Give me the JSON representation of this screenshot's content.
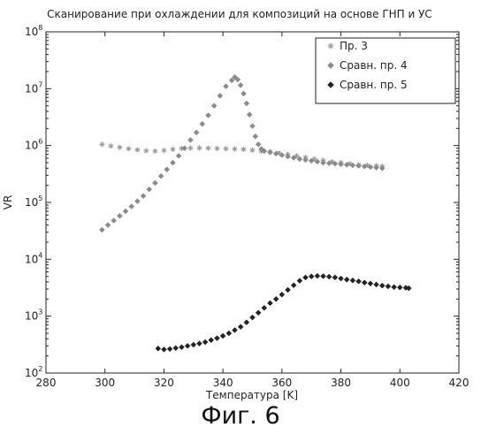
{
  "chart_data": {
    "type": "scatter",
    "title": "Сканирование при охлаждении для композиций на основе ГНП и УС",
    "xlabel": "Температура [K]",
    "ylabel": "VR",
    "xlim": [
      280,
      420
    ],
    "ylim": [
      100,
      100000000
    ],
    "yscale": "log",
    "x_ticks": [
      "280",
      "300",
      "320",
      "340",
      "360",
      "380",
      "400",
      "420"
    ],
    "legend_position": "top-right",
    "grid": false,
    "series": [
      {
        "name": "Пр. 3",
        "marker": "asterisk",
        "color": "#9a9a9a",
        "x": [
          299,
          302,
          305,
          308,
          311,
          314,
          317,
          320,
          323,
          326,
          329,
          332,
          335,
          338,
          341,
          344,
          347,
          350,
          353,
          356,
          359,
          362,
          365,
          368,
          371,
          374,
          377,
          380,
          383,
          386,
          389,
          392,
          394
        ],
        "y": [
          1050000,
          980000,
          930000,
          880000,
          840000,
          810000,
          800000,
          820000,
          860000,
          890000,
          900000,
          910000,
          900000,
          890000,
          880000,
          870000,
          860000,
          830000,
          800000,
          780000,
          740000,
          700000,
          660000,
          620000,
          580000,
          550000,
          520000,
          500000,
          480000,
          460000,
          450000,
          440000,
          430000
        ]
      },
      {
        "name": "Сравн. пр. 4",
        "marker": "diamond",
        "color": "#8a8a8a",
        "x": [
          299,
          301,
          303,
          305,
          307,
          309,
          311,
          313,
          315,
          317,
          319,
          321,
          323,
          325,
          327,
          329,
          331,
          333,
          335,
          337,
          339,
          341,
          343,
          344,
          345,
          346,
          347,
          348,
          349,
          350,
          351,
          352,
          353,
          354,
          356,
          358,
          360,
          362,
          364,
          366,
          368,
          370,
          372,
          374,
          376,
          378,
          380,
          382,
          384,
          386,
          388,
          390,
          392,
          394
        ],
        "y": [
          33000,
          40000,
          48000,
          58000,
          70000,
          85000,
          105000,
          130000,
          170000,
          220000,
          290000,
          380000,
          500000,
          660000,
          900000,
          1250000,
          1700000,
          2400000,
          3400000,
          5000000,
          7500000,
          11000000,
          14000000,
          16000000,
          14500000,
          11500000,
          8200000,
          5500000,
          3500000,
          2200000,
          1450000,
          1050000,
          870000,
          800000,
          760000,
          720000,
          680000,
          640000,
          610000,
          580000,
          560000,
          540000,
          520000,
          500000,
          490000,
          480000,
          470000,
          460000,
          450000,
          440000,
          430000,
          420000,
          410000,
          400000
        ]
      },
      {
        "name": "Сравн. пр. 5",
        "marker": "diamond",
        "color": "#222222",
        "x": [
          318,
          320,
          322,
          324,
          326,
          328,
          330,
          332,
          334,
          336,
          338,
          340,
          342,
          344,
          346,
          348,
          350,
          352,
          354,
          356,
          358,
          360,
          362,
          364,
          366,
          368,
          370,
          372,
          374,
          376,
          378,
          380,
          382,
          384,
          386,
          388,
          390,
          392,
          394,
          396,
          398,
          400,
          402,
          403
        ],
        "y": [
          270,
          260,
          265,
          275,
          285,
          300,
          315,
          330,
          350,
          380,
          410,
          450,
          500,
          570,
          650,
          780,
          950,
          1150,
          1400,
          1700,
          2000,
          2400,
          2900,
          3500,
          4200,
          4800,
          5000,
          5100,
          5050,
          4950,
          4800,
          4600,
          4400,
          4250,
          4100,
          3900,
          3750,
          3600,
          3450,
          3350,
          3250,
          3200,
          3150,
          3100
        ]
      }
    ]
  },
  "caption": "Фиг. 6"
}
